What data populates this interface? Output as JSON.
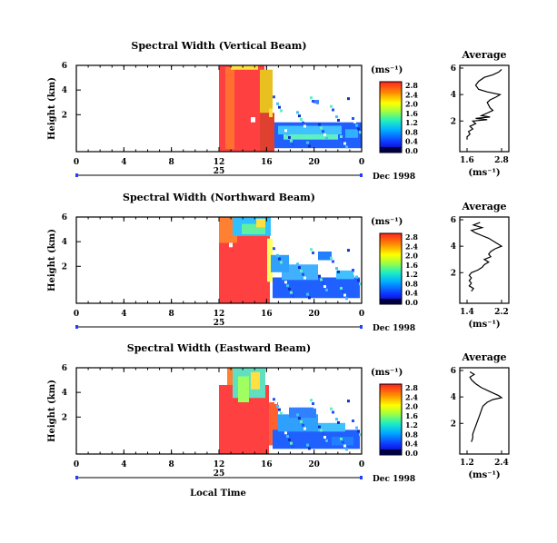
{
  "chart_data": [
    {
      "type": "heatmap",
      "title": "Spectral Width (Vertical Beam)",
      "ylabel": "Height (km)",
      "y_ticks": [
        "6",
        "4",
        "2"
      ],
      "x_ticks": [
        "0",
        "4",
        "8",
        "12",
        "16",
        "20",
        "0"
      ],
      "date_day": "25",
      "date_label": "Dec 1998",
      "colorbar_unit": "(ms⁻¹)",
      "colorbar_ticks": [
        "2.8",
        "2.4",
        "2.0",
        "1.6",
        "1.2",
        "0.8",
        "0.4",
        "0.0"
      ],
      "average": {
        "title": "Average",
        "xlabel": "(ms⁻¹)",
        "x_ticks": [
          "1.6",
          "2.8"
        ],
        "y_ticks": [
          "6",
          "4",
          "2"
        ],
        "profile": [
          [
            2.8,
            5.9
          ],
          [
            2.7,
            5.7
          ],
          [
            2.5,
            5.5
          ],
          [
            2.2,
            5.3
          ],
          [
            2.0,
            5.0
          ],
          [
            1.9,
            4.7
          ],
          [
            2.0,
            4.4
          ],
          [
            2.3,
            4.2
          ],
          [
            2.75,
            4.0
          ],
          [
            2.6,
            3.8
          ],
          [
            2.4,
            3.6
          ],
          [
            2.3,
            3.4
          ],
          [
            2.35,
            3.2
          ],
          [
            2.4,
            3.0
          ],
          [
            2.5,
            2.8
          ],
          [
            2.3,
            2.6
          ],
          [
            2.1,
            2.4
          ],
          [
            2.4,
            2.3
          ],
          [
            1.9,
            2.2
          ],
          [
            2.3,
            2.1
          ],
          [
            1.8,
            2.0
          ],
          [
            1.9,
            1.8
          ],
          [
            1.7,
            1.6
          ],
          [
            1.8,
            1.4
          ],
          [
            1.65,
            1.2
          ],
          [
            1.7,
            1.0
          ],
          [
            1.6,
            0.8
          ],
          [
            1.6,
            0.6
          ]
        ]
      }
    },
    {
      "type": "heatmap",
      "title": "Spectral Width (Northward Beam)",
      "ylabel": "Height (km)",
      "y_ticks": [
        "6",
        "4",
        "2"
      ],
      "x_ticks": [
        "0",
        "4",
        "8",
        "12",
        "16",
        "20",
        "0"
      ],
      "date_day": "25",
      "date_label": "Dec 1998",
      "colorbar_unit": "(ms⁻¹)",
      "colorbar_ticks": [
        "2.8",
        "2.4",
        "2.0",
        "1.6",
        "1.2",
        "0.8",
        "0.4",
        "0.0"
      ],
      "average": {
        "title": "Average",
        "xlabel": "(ms⁻¹)",
        "x_ticks": [
          "1.4",
          "2.2"
        ],
        "y_ticks": [
          "6",
          "4",
          "2"
        ],
        "profile": [
          [
            1.7,
            5.8
          ],
          [
            1.55,
            5.6
          ],
          [
            1.75,
            5.4
          ],
          [
            1.5,
            5.2
          ],
          [
            1.6,
            5.0
          ],
          [
            1.75,
            4.8
          ],
          [
            1.9,
            4.6
          ],
          [
            2.05,
            4.3
          ],
          [
            2.2,
            4.0
          ],
          [
            2.05,
            3.8
          ],
          [
            1.95,
            3.6
          ],
          [
            1.9,
            3.4
          ],
          [
            1.95,
            3.2
          ],
          [
            1.8,
            3.0
          ],
          [
            1.9,
            2.8
          ],
          [
            1.8,
            2.6
          ],
          [
            1.75,
            2.4
          ],
          [
            1.65,
            2.2
          ],
          [
            1.5,
            2.0
          ],
          [
            1.45,
            1.8
          ],
          [
            1.5,
            1.6
          ],
          [
            1.45,
            1.4
          ],
          [
            1.5,
            1.2
          ],
          [
            1.45,
            1.0
          ],
          [
            1.55,
            0.8
          ],
          [
            1.5,
            0.6
          ]
        ]
      }
    },
    {
      "type": "heatmap",
      "title": "Spectral Width (Eastward Beam)",
      "ylabel": "Height (km)",
      "y_ticks": [
        "6",
        "4",
        "2"
      ],
      "x_ticks": [
        "0",
        "4",
        "8",
        "12",
        "16",
        "20",
        "0"
      ],
      "date_day": "25",
      "date_label": "Dec 1998",
      "xlabel": "Local Time",
      "colorbar_unit": "(ms⁻¹)",
      "colorbar_ticks": [
        "2.8",
        "2.4",
        "2.0",
        "1.6",
        "1.2",
        "0.8",
        "0.4",
        "0.0"
      ],
      "average": {
        "title": "Average",
        "xlabel": "(ms⁻¹)",
        "x_ticks": [
          "1.2",
          "2.4"
        ],
        "y_ticks": [
          "6",
          "4",
          "2"
        ],
        "profile": [
          [
            1.3,
            5.9
          ],
          [
            1.45,
            5.7
          ],
          [
            1.3,
            5.5
          ],
          [
            1.35,
            5.3
          ],
          [
            1.5,
            5.0
          ],
          [
            1.7,
            4.7
          ],
          [
            2.0,
            4.4
          ],
          [
            2.3,
            4.1
          ],
          [
            2.4,
            3.95
          ],
          [
            2.1,
            3.8
          ],
          [
            1.9,
            3.6
          ],
          [
            1.75,
            3.3
          ],
          [
            1.7,
            3.0
          ],
          [
            1.65,
            2.7
          ],
          [
            1.6,
            2.4
          ],
          [
            1.55,
            2.1
          ],
          [
            1.5,
            1.8
          ],
          [
            1.45,
            1.5
          ],
          [
            1.4,
            1.2
          ],
          [
            1.4,
            0.9
          ],
          [
            1.35,
            0.6
          ]
        ]
      }
    }
  ]
}
